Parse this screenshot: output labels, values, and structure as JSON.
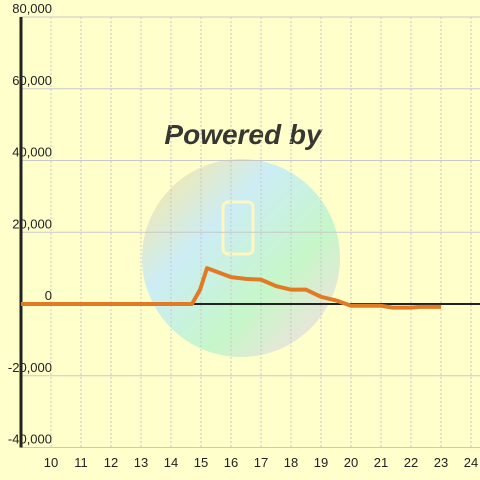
{
  "chart_data": {
    "type": "line",
    "watermark": "Powered by",
    "x": [
      9,
      14.7,
      14.97,
      15.2,
      16,
      16.5,
      17,
      17.5,
      18,
      18.5,
      19,
      19.5,
      20,
      21,
      21.4,
      22,
      22.3,
      23
    ],
    "series": [
      {
        "color": "#e07b24",
        "values": [
          0,
          0,
          4000,
          10000,
          7500,
          7000,
          6800,
          5000,
          4000,
          4000,
          2000,
          1000,
          -500,
          -500,
          -1000,
          -1000,
          -800,
          -800
        ]
      }
    ],
    "xlim": [
      9,
      24.3
    ],
    "xticks": [
      10,
      11,
      12,
      13,
      14,
      15,
      16,
      17,
      18,
      19,
      20,
      21,
      22,
      23,
      24
    ],
    "ylim": [
      -40000,
      80000
    ],
    "yticks": [
      {
        "value": -40000,
        "label": "-40,000"
      },
      {
        "value": -20000,
        "label": "-20,000"
      },
      0,
      {
        "value": 20000,
        "label": "20,000"
      },
      {
        "value": 40000,
        "label": "40,000"
      },
      {
        "value": 60000,
        "label": "60,000"
      },
      {
        "value": 80000,
        "label": "80,000"
      }
    ],
    "grid": true
  }
}
